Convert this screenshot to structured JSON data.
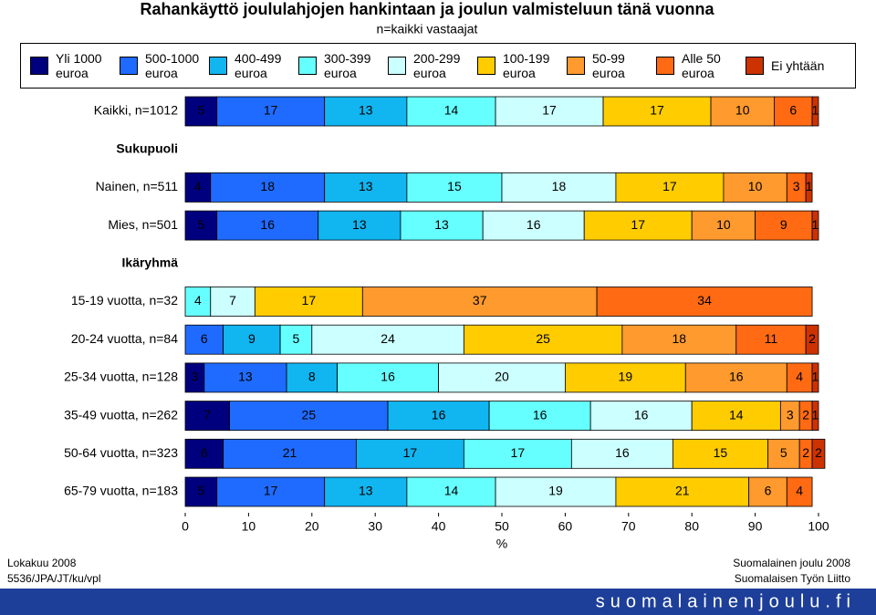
{
  "chart_data": {
    "type": "stacked-bar-horizontal",
    "title": "Rahankäyttö joululahjojen hankintaan ja joulun valmisteluun tänä vuonna",
    "subtitle": "n=kaikki vastaajat",
    "x_label": "%",
    "xlim": [
      0,
      100
    ],
    "xticks": [
      0,
      10,
      20,
      30,
      40,
      50,
      60,
      70,
      80,
      90,
      100
    ],
    "categories": [
      "Kaikki, n=1012",
      "Sukupuoli",
      "Nainen, n=511",
      "Mies, n=501",
      "Ikäryhmä",
      "15-19 vuotta, n=32",
      "20-24 vuotta, n=84",
      "25-34 vuotta, n=128",
      "35-49 vuotta, n=262",
      "50-64 vuotta, n=323",
      "65-79 vuotta, n=183"
    ],
    "series": [
      {
        "name": "Yli 1000 euroa",
        "color": "#00007f",
        "values": [
          5,
          null,
          4,
          5,
          null,
          null,
          null,
          3,
          7,
          6,
          5
        ]
      },
      {
        "name": "500-1000 euroa",
        "color": "#1f6bff",
        "values": [
          17,
          null,
          18,
          16,
          null,
          null,
          6,
          13,
          25,
          21,
          17
        ]
      },
      {
        "name": "400-499 euroa",
        "color": "#11b5f0",
        "values": [
          13,
          null,
          13,
          13,
          null,
          null,
          9,
          8,
          16,
          17,
          13
        ]
      },
      {
        "name": "300-399 euroa",
        "color": "#66ffff",
        "values": [
          14,
          null,
          15,
          13,
          null,
          4,
          5,
          16,
          16,
          17,
          14
        ]
      },
      {
        "name": "200-299 euroa",
        "color": "#ccffff",
        "values": [
          17,
          null,
          18,
          16,
          null,
          7,
          24,
          20,
          16,
          16,
          19
        ]
      },
      {
        "name": "100-199 euroa",
        "color": "#ffcc00",
        "values": [
          17,
          null,
          17,
          17,
          null,
          17,
          25,
          19,
          14,
          15,
          21
        ]
      },
      {
        "name": "50-99 euroa",
        "color": "#ff9a2e",
        "values": [
          10,
          null,
          10,
          10,
          null,
          37,
          18,
          16,
          3,
          5,
          6
        ]
      },
      {
        "name": "Alle 50 euroa",
        "color": "#ff6a13",
        "values": [
          6,
          null,
          3,
          9,
          null,
          34,
          11,
          4,
          2,
          2,
          4
        ]
      },
      {
        "name": "Ei yhtään",
        "color": "#cc3300",
        "values": [
          1,
          null,
          1,
          1,
          null,
          null,
          2,
          1,
          1,
          2,
          null
        ]
      }
    ],
    "footer": {
      "left": [
        "Lokakuu 2008",
        "5536/JPA/JT/ku/vpl"
      ],
      "right": [
        "Suomalainen joulu 2008",
        "Suomalaisen Työn Liitto"
      ],
      "site": "suomalainenjoulu.fi"
    }
  }
}
